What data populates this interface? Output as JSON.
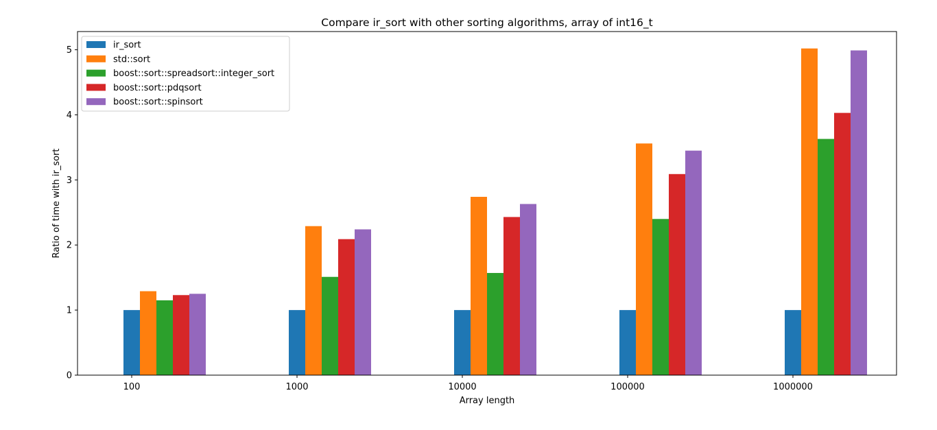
{
  "chart_data": {
    "type": "bar",
    "title": "Compare ir_sort with other sorting algorithms, array of int16_t",
    "xlabel": "Array length",
    "ylabel": "Ratio of time with ir_sort",
    "categories": [
      "100",
      "1000",
      "10000",
      "100000",
      "1000000"
    ],
    "ylim": [
      0,
      5.28
    ],
    "yticks": [
      0,
      1,
      2,
      3,
      4,
      5
    ],
    "grid": false,
    "legend_position": "top-left",
    "series": [
      {
        "name": "ir_sort",
        "color": "#1f77b4",
        "values": [
          1.0,
          1.0,
          1.0,
          1.0,
          1.0
        ]
      },
      {
        "name": "std::sort",
        "color": "#ff7f0e",
        "values": [
          1.29,
          2.29,
          2.74,
          3.56,
          5.02
        ]
      },
      {
        "name": "boost::sort::spreadsort::integer_sort",
        "color": "#2ca02c",
        "values": [
          1.15,
          1.51,
          1.57,
          2.4,
          3.63
        ]
      },
      {
        "name": "boost::sort::pdqsort",
        "color": "#d62728",
        "values": [
          1.23,
          2.09,
          2.43,
          3.09,
          4.03
        ]
      },
      {
        "name": "boost::sort::spinsort",
        "color": "#9467bd",
        "values": [
          1.25,
          2.24,
          2.63,
          3.45,
          4.99
        ]
      }
    ]
  }
}
